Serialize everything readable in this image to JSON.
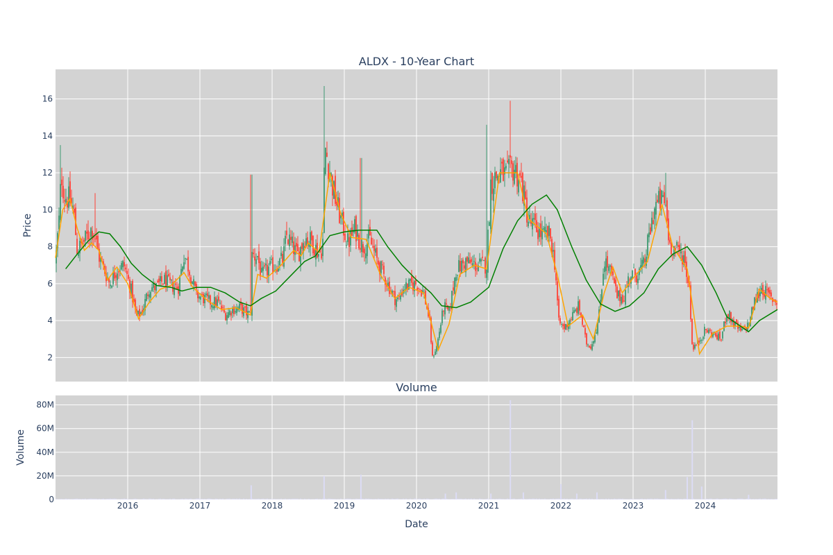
{
  "chart_data": [
    {
      "type": "candlestick",
      "title": "ALDX - 10-Year Chart",
      "ylabel": "Price",
      "xlim": [
        2015.0,
        2025.0
      ],
      "ylim": [
        0.7,
        17.6
      ],
      "y_ticks": [
        2,
        4,
        6,
        8,
        10,
        12,
        14,
        16
      ],
      "grid": true,
      "up_color": "#3d9970",
      "down_color": "#ff4136",
      "ma_short_color": "#ffa500",
      "ma_long_color": "#008000",
      "close_path": [
        [
          2015.0,
          7.2
        ],
        [
          2015.05,
          9.5
        ],
        [
          2015.08,
          12.0
        ],
        [
          2015.12,
          10.8
        ],
        [
          2015.2,
          10.5
        ],
        [
          2015.25,
          10.0
        ],
        [
          2015.3,
          7.8
        ],
        [
          2015.4,
          8.3
        ],
        [
          2015.5,
          9.0
        ],
        [
          2015.55,
          8.5
        ],
        [
          2015.6,
          7.5
        ],
        [
          2015.7,
          6.5
        ],
        [
          2015.75,
          6.0
        ],
        [
          2015.85,
          6.8
        ],
        [
          2015.95,
          7.0
        ],
        [
          2016.05,
          5.6
        ],
        [
          2016.12,
          4.2
        ],
        [
          2016.2,
          4.5
        ],
        [
          2016.3,
          5.8
        ],
        [
          2016.4,
          5.8
        ],
        [
          2016.5,
          6.2
        ],
        [
          2016.6,
          5.9
        ],
        [
          2016.7,
          5.8
        ],
        [
          2016.78,
          7.6
        ],
        [
          2016.85,
          6.8
        ],
        [
          2016.95,
          5.4
        ],
        [
          2017.05,
          5.2
        ],
        [
          2017.15,
          5.0
        ],
        [
          2017.25,
          5.0
        ],
        [
          2017.35,
          4.3
        ],
        [
          2017.45,
          4.6
        ],
        [
          2017.55,
          4.7
        ],
        [
          2017.65,
          4.4
        ],
        [
          2017.7,
          4.3
        ],
        [
          2017.72,
          7.5
        ],
        [
          2017.8,
          7.5
        ],
        [
          2017.85,
          6.4
        ],
        [
          2017.95,
          6.8
        ],
        [
          2018.05,
          7.0
        ],
        [
          2018.15,
          7.3
        ],
        [
          2018.2,
          8.6
        ],
        [
          2018.3,
          7.9
        ],
        [
          2018.35,
          7.5
        ],
        [
          2018.45,
          8.5
        ],
        [
          2018.55,
          8.3
        ],
        [
          2018.65,
          7.6
        ],
        [
          2018.7,
          8.0
        ],
        [
          2018.73,
          13.5
        ],
        [
          2018.78,
          12.5
        ],
        [
          2018.85,
          11.0
        ],
        [
          2018.95,
          9.5
        ],
        [
          2019.05,
          8.2
        ],
        [
          2019.15,
          9.0
        ],
        [
          2019.25,
          8.0
        ],
        [
          2019.35,
          8.4
        ],
        [
          2019.45,
          7.3
        ],
        [
          2019.52,
          6.7
        ],
        [
          2019.6,
          6.0
        ],
        [
          2019.7,
          5.2
        ],
        [
          2019.75,
          5.1
        ],
        [
          2019.82,
          5.8
        ],
        [
          2019.9,
          5.9
        ],
        [
          2020.0,
          6.0
        ],
        [
          2020.1,
          5.5
        ],
        [
          2020.18,
          4.0
        ],
        [
          2020.22,
          2.0
        ],
        [
          2020.28,
          2.6
        ],
        [
          2020.38,
          4.8
        ],
        [
          2020.45,
          4.4
        ],
        [
          2020.55,
          6.8
        ],
        [
          2020.6,
          6.9
        ],
        [
          2020.68,
          7.2
        ],
        [
          2020.78,
          7.0
        ],
        [
          2020.88,
          7.0
        ],
        [
          2020.97,
          7.0
        ],
        [
          2021.03,
          11.5
        ],
        [
          2021.15,
          12.0
        ],
        [
          2021.25,
          11.8
        ],
        [
          2021.35,
          12.3
        ],
        [
          2021.45,
          11.5
        ],
        [
          2021.55,
          9.4
        ],
        [
          2021.65,
          9.0
        ],
        [
          2021.75,
          8.6
        ],
        [
          2021.85,
          8.6
        ],
        [
          2021.92,
          7.0
        ],
        [
          2021.97,
          3.9
        ],
        [
          2022.05,
          3.6
        ],
        [
          2022.15,
          4.2
        ],
        [
          2022.25,
          4.8
        ],
        [
          2022.35,
          2.8
        ],
        [
          2022.42,
          2.6
        ],
        [
          2022.52,
          4.0
        ],
        [
          2022.6,
          7.3
        ],
        [
          2022.7,
          6.5
        ],
        [
          2022.78,
          5.3
        ],
        [
          2022.88,
          5.3
        ],
        [
          2022.95,
          6.5
        ],
        [
          2023.05,
          6.5
        ],
        [
          2023.15,
          7.0
        ],
        [
          2023.22,
          8.5
        ],
        [
          2023.3,
          10.2
        ],
        [
          2023.4,
          10.5
        ],
        [
          2023.45,
          10.3
        ],
        [
          2023.5,
          8.2
        ],
        [
          2023.6,
          7.8
        ],
        [
          2023.7,
          7.5
        ],
        [
          2023.78,
          5.8
        ],
        [
          2023.82,
          2.5
        ],
        [
          2023.9,
          2.8
        ],
        [
          2024.0,
          3.5
        ],
        [
          2024.1,
          3.3
        ],
        [
          2024.22,
          3.0
        ],
        [
          2024.3,
          4.5
        ],
        [
          2024.4,
          3.8
        ],
        [
          2024.5,
          3.4
        ],
        [
          2024.6,
          3.8
        ],
        [
          2024.68,
          5.0
        ],
        [
          2024.78,
          5.8
        ],
        [
          2024.88,
          5.3
        ],
        [
          2025.0,
          5.0
        ]
      ],
      "spikes": [
        [
          2015.07,
          13.5
        ],
        [
          2015.55,
          10.9
        ],
        [
          2017.71,
          11.9
        ],
        [
          2018.72,
          16.7
        ],
        [
          2019.23,
          12.8
        ],
        [
          2021.3,
          15.9
        ],
        [
          2023.45,
          12.0
        ],
        [
          2020.97,
          14.6
        ]
      ],
      "ma_short": [
        [
          2015.0,
          7.4
        ],
        [
          2015.1,
          10.0
        ],
        [
          2015.2,
          10.6
        ],
        [
          2015.3,
          9.0
        ],
        [
          2015.4,
          7.8
        ],
        [
          2015.5,
          8.2
        ],
        [
          2015.6,
          7.8
        ],
        [
          2015.72,
          6.2
        ],
        [
          2015.85,
          6.9
        ],
        [
          2016.0,
          6.0
        ],
        [
          2016.15,
          4.1
        ],
        [
          2016.3,
          5.0
        ],
        [
          2016.45,
          5.7
        ],
        [
          2016.6,
          5.9
        ],
        [
          2016.78,
          6.6
        ],
        [
          2016.9,
          5.8
        ],
        [
          2017.1,
          5.1
        ],
        [
          2017.3,
          4.6
        ],
        [
          2017.5,
          4.7
        ],
        [
          2017.7,
          4.3
        ],
        [
          2017.8,
          6.5
        ],
        [
          2017.92,
          6.3
        ],
        [
          2018.1,
          6.9
        ],
        [
          2018.3,
          7.8
        ],
        [
          2018.4,
          7.5
        ],
        [
          2018.5,
          8.2
        ],
        [
          2018.65,
          7.7
        ],
        [
          2018.8,
          12.0
        ],
        [
          2018.95,
          9.8
        ],
        [
          2019.1,
          8.5
        ],
        [
          2019.3,
          8.4
        ],
        [
          2019.5,
          6.5
        ],
        [
          2019.7,
          5.2
        ],
        [
          2019.9,
          5.8
        ],
        [
          2020.1,
          5.5
        ],
        [
          2020.3,
          2.4
        ],
        [
          2020.45,
          3.8
        ],
        [
          2020.6,
          6.5
        ],
        [
          2020.8,
          7.0
        ],
        [
          2020.97,
          6.8
        ],
        [
          2021.15,
          12.0
        ],
        [
          2021.4,
          12.0
        ],
        [
          2021.55,
          9.5
        ],
        [
          2021.8,
          8.7
        ],
        [
          2021.95,
          6.5
        ],
        [
          2022.1,
          3.7
        ],
        [
          2022.3,
          4.3
        ],
        [
          2022.45,
          3.0
        ],
        [
          2022.6,
          5.5
        ],
        [
          2022.72,
          6.9
        ],
        [
          2022.85,
          5.5
        ],
        [
          2023.0,
          6.3
        ],
        [
          2023.2,
          7.2
        ],
        [
          2023.4,
          10.3
        ],
        [
          2023.55,
          8.0
        ],
        [
          2023.75,
          6.8
        ],
        [
          2023.92,
          2.2
        ],
        [
          2024.1,
          3.3
        ],
        [
          2024.3,
          3.7
        ],
        [
          2024.5,
          3.7
        ],
        [
          2024.6,
          3.6
        ],
        [
          2024.75,
          5.7
        ],
        [
          2024.9,
          5.2
        ],
        [
          2025.0,
          5.0
        ]
      ],
      "ma_long": [
        [
          2015.14,
          6.8
        ],
        [
          2015.3,
          7.6
        ],
        [
          2015.45,
          8.3
        ],
        [
          2015.6,
          8.8
        ],
        [
          2015.75,
          8.7
        ],
        [
          2015.9,
          8.0
        ],
        [
          2016.05,
          7.1
        ],
        [
          2016.2,
          6.5
        ],
        [
          2016.4,
          5.9
        ],
        [
          2016.6,
          5.8
        ],
        [
          2016.75,
          5.6
        ],
        [
          2016.95,
          5.8
        ],
        [
          2017.15,
          5.8
        ],
        [
          2017.35,
          5.5
        ],
        [
          2017.55,
          5.0
        ],
        [
          2017.7,
          4.8
        ],
        [
          2017.85,
          5.2
        ],
        [
          2018.05,
          5.6
        ],
        [
          2018.25,
          6.4
        ],
        [
          2018.45,
          7.2
        ],
        [
          2018.6,
          7.5
        ],
        [
          2018.8,
          8.6
        ],
        [
          2019.0,
          8.8
        ],
        [
          2019.2,
          8.9
        ],
        [
          2019.45,
          8.9
        ],
        [
          2019.6,
          8.0
        ],
        [
          2019.8,
          7.0
        ],
        [
          2020.0,
          6.2
        ],
        [
          2020.2,
          5.5
        ],
        [
          2020.35,
          4.8
        ],
        [
          2020.55,
          4.7
        ],
        [
          2020.75,
          5.0
        ],
        [
          2021.0,
          5.8
        ],
        [
          2021.2,
          7.9
        ],
        [
          2021.4,
          9.4
        ],
        [
          2021.6,
          10.3
        ],
        [
          2021.8,
          10.8
        ],
        [
          2021.95,
          10.0
        ],
        [
          2022.15,
          8.0
        ],
        [
          2022.35,
          6.2
        ],
        [
          2022.55,
          4.9
        ],
        [
          2022.75,
          4.5
        ],
        [
          2022.95,
          4.8
        ],
        [
          2023.15,
          5.5
        ],
        [
          2023.35,
          6.8
        ],
        [
          2023.55,
          7.6
        ],
        [
          2023.75,
          8.0
        ],
        [
          2023.95,
          7.0
        ],
        [
          2024.15,
          5.5
        ],
        [
          2024.3,
          4.2
        ],
        [
          2024.45,
          3.8
        ],
        [
          2024.6,
          3.4
        ],
        [
          2024.75,
          4.0
        ],
        [
          2025.0,
          4.6
        ]
      ]
    },
    {
      "type": "bar",
      "title": "Volume",
      "xlabel": "Date",
      "ylabel": "Volume",
      "xlim": [
        2015.0,
        2025.0
      ],
      "ylim": [
        0,
        88
      ],
      "y_ticks": [
        0,
        20,
        40,
        60,
        80
      ],
      "y_tick_labels": [
        "0",
        "20M",
        "40M",
        "60M",
        "80M"
      ],
      "x_ticks": [
        2016,
        2017,
        2018,
        2019,
        2020,
        2021,
        2022,
        2023,
        2024
      ],
      "x_tick_labels": [
        "2016",
        "2017",
        "2018",
        "2019",
        "2020",
        "2021",
        "2022",
        "2023",
        "2024"
      ],
      "bar_color": "#dcdcf5",
      "unit": "millions",
      "spikes": [
        [
          2017.71,
          12
        ],
        [
          2018.72,
          20
        ],
        [
          2019.23,
          21
        ],
        [
          2020.4,
          5
        ],
        [
          2020.55,
          6
        ],
        [
          2021.03,
          5
        ],
        [
          2021.3,
          84
        ],
        [
          2021.48,
          6
        ],
        [
          2022.0,
          13
        ],
        [
          2022.22,
          5
        ],
        [
          2022.5,
          6
        ],
        [
          2023.45,
          8
        ],
        [
          2023.75,
          19
        ],
        [
          2023.82,
          67
        ],
        [
          2023.95,
          11
        ],
        [
          2024.6,
          4
        ]
      ]
    }
  ]
}
